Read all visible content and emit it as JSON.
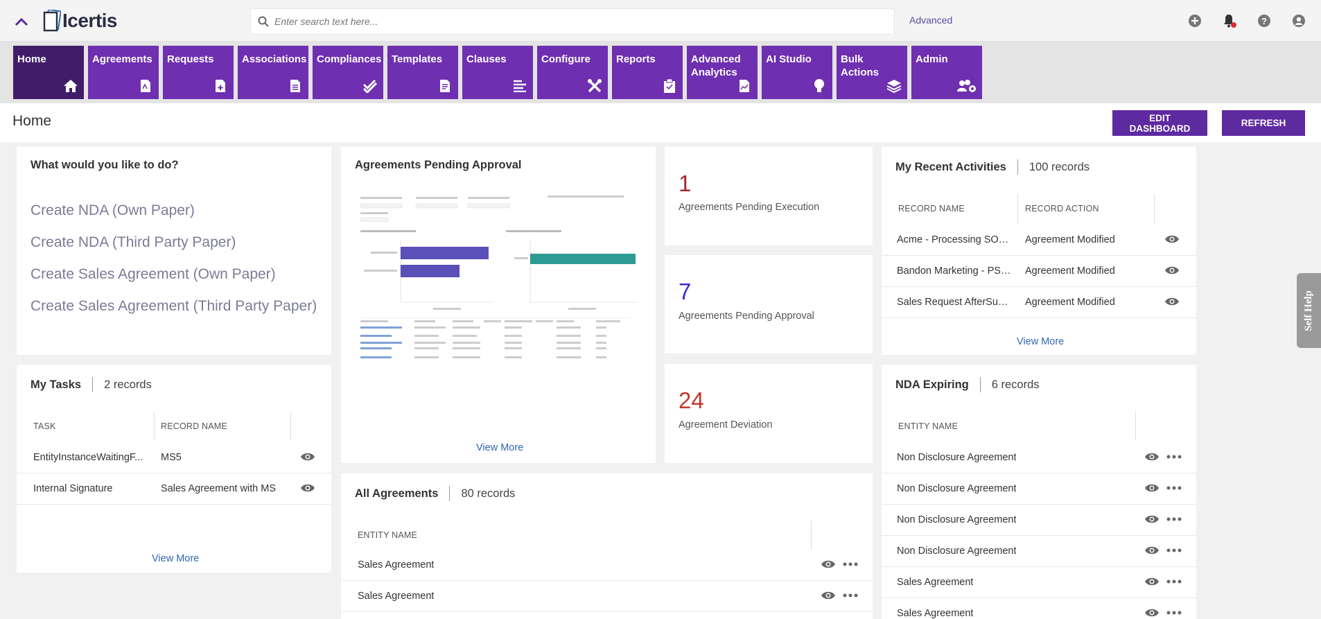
{
  "app": {
    "logo_text": "Icertis",
    "search_placeholder": "Enter search text here...",
    "advanced_label": "Advanced"
  },
  "nav": [
    {
      "label": "Home",
      "icon": "home-icon",
      "active": true
    },
    {
      "label": "Agreements",
      "icon": "agreement-doc-icon"
    },
    {
      "label": "Requests",
      "icon": "request-doc-icon"
    },
    {
      "label": "Associations",
      "icon": "document-icon"
    },
    {
      "label": "Compliances",
      "icon": "double-check-icon"
    },
    {
      "label": "Templates",
      "icon": "template-doc-icon"
    },
    {
      "label": "Clauses",
      "icon": "align-left-icon"
    },
    {
      "label": "Configure",
      "icon": "tools-icon"
    },
    {
      "label": "Reports",
      "icon": "clipboard-icon"
    },
    {
      "label": "Advanced Analytics",
      "icon": "analytics-doc-icon"
    },
    {
      "label": "AI Studio",
      "icon": "lightbulb-icon"
    },
    {
      "label": "Bulk Actions",
      "icon": "layers-icon"
    },
    {
      "label": "Admin",
      "icon": "users-gear-icon"
    }
  ],
  "page": {
    "title": "Home",
    "edit_dashboard": "EDIT DASHBOARD",
    "refresh": "REFRESH"
  },
  "quick_actions": {
    "title": "What would you like to do?",
    "items": [
      "Create NDA (Own Paper)",
      "Create NDA (Third Party Paper)",
      "Create Sales Agreement (Own Paper)",
      "Create Sales Agreement (Third Party Paper)"
    ]
  },
  "tasks": {
    "title": "My Tasks",
    "count": "2 records",
    "col_task": "TASK",
    "col_record": "RECORD NAME",
    "rows": [
      {
        "task": "EntityInstanceWaitingF...",
        "record": "MS5"
      },
      {
        "task": "Internal Signature",
        "record": "Sales Agreement with MS"
      }
    ],
    "view_more": "View More"
  },
  "pending_approval": {
    "title": "Agreements Pending Approval",
    "view_more": "View More"
  },
  "kpis": [
    {
      "value": "1",
      "label": "Agreements Pending Execution",
      "color": "#a52a2a"
    },
    {
      "value": "7",
      "label": "Agreements Pending Approval",
      "color": "#3a2ccc"
    },
    {
      "value": "24",
      "label": "Agreement Deviation",
      "color": "#c0392b"
    }
  ],
  "all_agreements": {
    "title": "All Agreements",
    "count": "80 records",
    "col_entity": "ENTITY NAME",
    "rows": [
      "Sales Agreement",
      "Sales Agreement"
    ]
  },
  "recent": {
    "title": "My Recent Activities",
    "count": "100 records",
    "col_name": "RECORD NAME",
    "col_action": "RECORD ACTION",
    "rows": [
      {
        "name": "Acme - Processing SOW ...",
        "action": "Agreement Modified"
      },
      {
        "name": "Bandon Marketing - PSA...",
        "action": "Agreement Modified"
      },
      {
        "name": "Sales Request AfterSupply",
        "action": "Agreement Modified"
      }
    ],
    "view_more": "View More"
  },
  "nda": {
    "title": "NDA Expiring",
    "count": "6 records",
    "col_entity": "ENTITY NAME",
    "rows": [
      "Non Disclosure Agreement",
      "Non Disclosure Agreement",
      "Non Disclosure Agreement",
      "Non Disclosure Agreement",
      "Sales Agreement",
      "Sales Agreement"
    ]
  },
  "self_help": "Self Help",
  "colors": {
    "nav_tile": "#6e2fb0",
    "nav_active": "#401c69",
    "button": "#5e2aa0",
    "link": "#2f66b3"
  }
}
